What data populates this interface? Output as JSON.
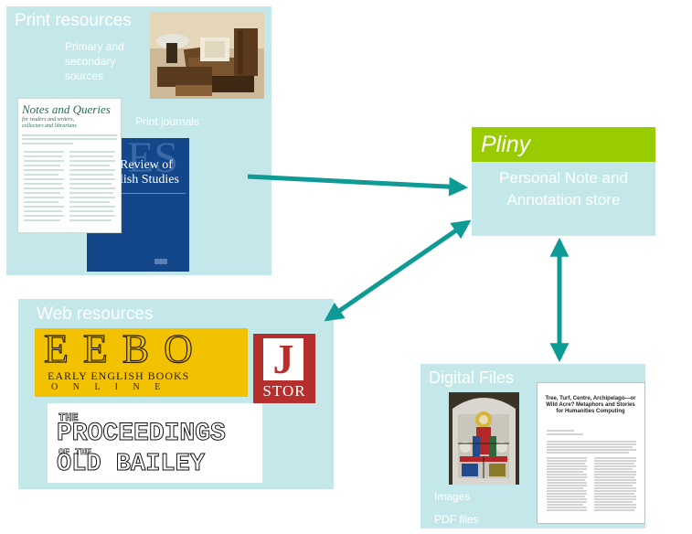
{
  "print": {
    "title": "Print resources",
    "primary_label": "Primary and secondary sources",
    "journals_label": "Print journals",
    "nq_title": "Notes and Queries",
    "nq_subtitle": "for readers and writers, collectors and librarians",
    "res_cover_top": "ES",
    "res_cover_line1": "Review of",
    "res_cover_line2": "lish Studies"
  },
  "pliny": {
    "name": "Pliny",
    "subtitle": "Personal Note and Annotation store"
  },
  "web": {
    "title": "Web resources",
    "eebo_main": "EEBO",
    "eebo_line1": "EARLY ENGLISH BOOKS",
    "eebo_line2": "O N L I N E",
    "jstor_letter": "J",
    "jstor_name": "STOR",
    "ob_line1": "THE",
    "ob_line2": "PROCEEDINGS",
    "ob_line3": "OF THE",
    "ob_line4": "OLD BAILEY"
  },
  "digital": {
    "title": "Digital Files",
    "images_label": "Images",
    "pdf_label": "PDF files",
    "pdf_title": "Tree, Turf, Centre, Archipelago—or Wild Acre? Metaphors and Stories for Humanities Computing"
  },
  "colors": {
    "panel_bg": "#c4e8ea",
    "arrow": "#0e9a95",
    "pliny_header": "#99cc00",
    "eebo_bg": "#f2c200",
    "jstor_red": "#b5302d",
    "journal_blue": "#14478a"
  }
}
